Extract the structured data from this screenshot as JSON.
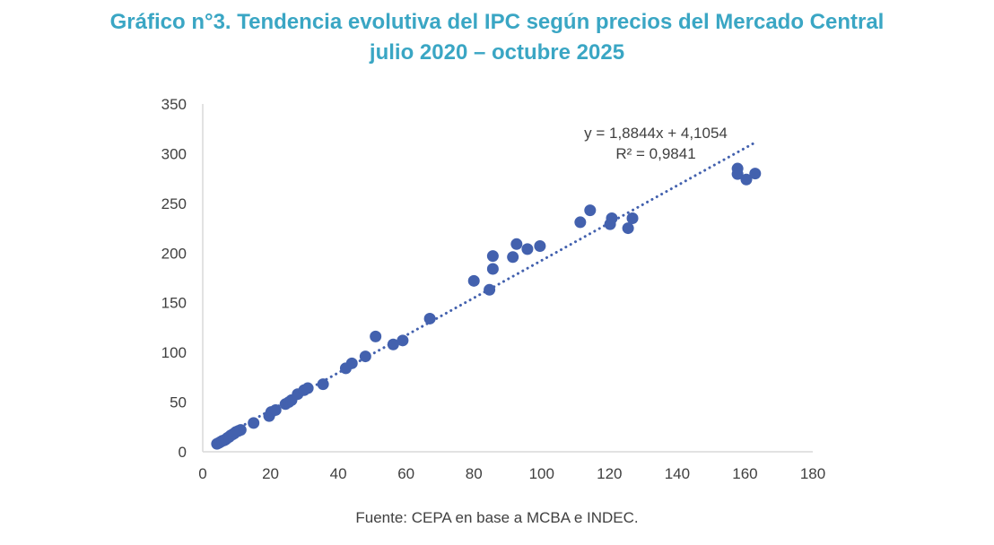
{
  "chart_data": {
    "type": "scatter",
    "title": "Gráfico n°3. Tendencia evolutiva del IPC según precios del Mercado Central",
    "subtitle": "julio 2020 – octubre 2025",
    "xlabel": "",
    "ylabel": "",
    "xlim": [
      0,
      180
    ],
    "ylim": [
      0,
      350
    ],
    "xticks": [
      0,
      20,
      40,
      60,
      80,
      100,
      120,
      140,
      160,
      180
    ],
    "yticks": [
      0,
      50,
      100,
      150,
      200,
      250,
      300,
      350
    ],
    "grid": false,
    "legend": "none",
    "marker_color": "#4361ae",
    "trendline": {
      "type": "linear",
      "slope": 1.8844,
      "intercept": 4.1054,
      "x_range": [
        4,
        163
      ],
      "equation_label": "y = 1,8844x + 4,1054",
      "r2_label": "R² = 0,9841",
      "style": "dotted"
    },
    "points": [
      {
        "x": 4.2,
        "y": 8
      },
      {
        "x": 4.8,
        "y": 9
      },
      {
        "x": 5.3,
        "y": 10
      },
      {
        "x": 5.8,
        "y": 11
      },
      {
        "x": 6.3,
        "y": 11.5
      },
      {
        "x": 6.8,
        "y": 12.5
      },
      {
        "x": 7.3,
        "y": 14
      },
      {
        "x": 7.8,
        "y": 15
      },
      {
        "x": 8.3,
        "y": 16.5
      },
      {
        "x": 8.8,
        "y": 17.5
      },
      {
        "x": 9.3,
        "y": 18.5
      },
      {
        "x": 9.8,
        "y": 20
      },
      {
        "x": 10.5,
        "y": 21
      },
      {
        "x": 11.2,
        "y": 22
      },
      {
        "x": 15,
        "y": 29
      },
      {
        "x": 19.6,
        "y": 36
      },
      {
        "x": 20.2,
        "y": 40
      },
      {
        "x": 21.5,
        "y": 42
      },
      {
        "x": 24.4,
        "y": 48
      },
      {
        "x": 25.4,
        "y": 50
      },
      {
        "x": 26.2,
        "y": 52
      },
      {
        "x": 28,
        "y": 58
      },
      {
        "x": 29.9,
        "y": 62
      },
      {
        "x": 31,
        "y": 64
      },
      {
        "x": 35.5,
        "y": 68
      },
      {
        "x": 42.2,
        "y": 84
      },
      {
        "x": 44,
        "y": 89
      },
      {
        "x": 48,
        "y": 96
      },
      {
        "x": 51,
        "y": 116
      },
      {
        "x": 56.2,
        "y": 108
      },
      {
        "x": 59,
        "y": 112
      },
      {
        "x": 67,
        "y": 134
      },
      {
        "x": 80,
        "y": 172
      },
      {
        "x": 84.6,
        "y": 163
      },
      {
        "x": 85.6,
        "y": 184
      },
      {
        "x": 85.6,
        "y": 197
      },
      {
        "x": 91.5,
        "y": 196
      },
      {
        "x": 92.6,
        "y": 209
      },
      {
        "x": 95.8,
        "y": 204
      },
      {
        "x": 99.5,
        "y": 207
      },
      {
        "x": 111.4,
        "y": 231
      },
      {
        "x": 114.3,
        "y": 243
      },
      {
        "x": 120.2,
        "y": 229
      },
      {
        "x": 120.7,
        "y": 235
      },
      {
        "x": 125.5,
        "y": 225
      },
      {
        "x": 126.8,
        "y": 235
      },
      {
        "x": 157.8,
        "y": 285
      },
      {
        "x": 157.8,
        "y": 279.5
      },
      {
        "x": 160.4,
        "y": 274
      },
      {
        "x": 163,
        "y": 280
      }
    ]
  },
  "source": "Fuente: CEPA en base a MCBA e INDEC."
}
